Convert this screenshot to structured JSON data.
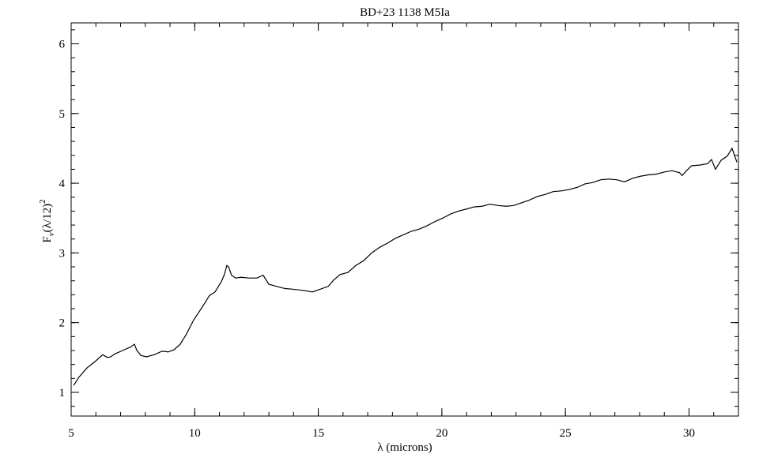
{
  "chart_data": {
    "type": "line",
    "title": "BD+23 1138 M5Ia",
    "xlabel": "λ (microns)",
    "ylabel": [
      "F",
      "ν",
      "(λ/12)",
      "2"
    ],
    "xlim": [
      5,
      32
    ],
    "ylim": [
      0.66,
      6.3
    ],
    "xticks": [
      5,
      10,
      15,
      20,
      25,
      30
    ],
    "yticks": [
      1,
      2,
      3,
      4,
      5,
      6
    ],
    "minor_ticks": 5,
    "grid": false,
    "series": [
      {
        "color": "#000000",
        "x": [
          5.1,
          5.32,
          5.64,
          5.96,
          6.28,
          6.47,
          6.6,
          6.76,
          7.08,
          7.4,
          7.56,
          7.66,
          7.82,
          8.04,
          8.36,
          8.68,
          8.93,
          9.16,
          9.41,
          9.64,
          9.96,
          10.28,
          10.6,
          10.82,
          11.08,
          11.2,
          11.3,
          11.37,
          11.49,
          11.65,
          11.88,
          12.2,
          12.52,
          12.77,
          13.0,
          13.32,
          13.64,
          13.96,
          14.21,
          14.44,
          14.76,
          15.08,
          15.4,
          15.62,
          15.88,
          16.2,
          16.52,
          16.84,
          17.16,
          17.48,
          17.8,
          18.12,
          18.44,
          18.76,
          19.08,
          19.4,
          19.72,
          20.04,
          20.36,
          20.67,
          21.0,
          21.3,
          21.63,
          21.95,
          22.27,
          22.6,
          22.9,
          23.23,
          23.55,
          23.87,
          24.19,
          24.5,
          24.83,
          25.15,
          25.47,
          25.79,
          26.11,
          26.43,
          26.75,
          27.07,
          27.39,
          27.71,
          28.03,
          28.35,
          28.67,
          28.99,
          29.31,
          29.62,
          29.72,
          29.9,
          30.1,
          30.43,
          30.75,
          30.91,
          31.07,
          31.3,
          31.55,
          31.74,
          31.94
        ],
        "values": [
          1.1,
          1.22,
          1.35,
          1.44,
          1.54,
          1.5,
          1.51,
          1.55,
          1.6,
          1.65,
          1.69,
          1.6,
          1.53,
          1.51,
          1.54,
          1.59,
          1.58,
          1.61,
          1.69,
          1.82,
          2.04,
          2.21,
          2.39,
          2.44,
          2.59,
          2.69,
          2.82,
          2.8,
          2.68,
          2.64,
          2.65,
          2.64,
          2.64,
          2.68,
          2.55,
          2.52,
          2.49,
          2.48,
          2.47,
          2.46,
          2.44,
          2.48,
          2.52,
          2.61,
          2.69,
          2.72,
          2.82,
          2.89,
          3.0,
          3.08,
          3.14,
          3.21,
          3.26,
          3.31,
          3.34,
          3.39,
          3.45,
          3.5,
          3.56,
          3.6,
          3.63,
          3.66,
          3.67,
          3.7,
          3.68,
          3.67,
          3.68,
          3.72,
          3.76,
          3.81,
          3.84,
          3.88,
          3.89,
          3.91,
          3.94,
          3.99,
          4.01,
          4.05,
          4.06,
          4.05,
          4.02,
          4.07,
          4.1,
          4.12,
          4.13,
          4.16,
          4.18,
          4.15,
          4.11,
          4.18,
          4.25,
          4.26,
          4.28,
          4.34,
          4.2,
          4.33,
          4.39,
          4.5,
          4.3
        ]
      }
    ]
  }
}
